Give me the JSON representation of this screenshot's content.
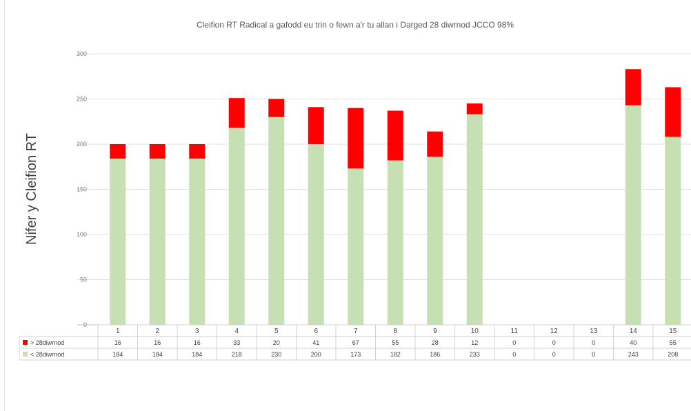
{
  "chart_data": {
    "type": "bar",
    "stacked": true,
    "title": "Cleifion RT Radical a gafodd eu trin o fewn a'r tu allan i Darged 28 diwrnod JCCO  98%",
    "ylabel": "Nifer y Cleifion RT",
    "xlabel": "",
    "ylim": [
      0,
      300
    ],
    "yticks": [
      0,
      50,
      100,
      150,
      200,
      250,
      300
    ],
    "grid": true,
    "legend": "data-table",
    "categories": [
      "1",
      "2",
      "3",
      "4",
      "5",
      "6",
      "7",
      "8",
      "9",
      "10",
      "11",
      "12",
      "13",
      "14",
      "15"
    ],
    "series": [
      {
        "name": "< 28diwrnod",
        "color": "#c6e0b4",
        "values": [
          184,
          184,
          184,
          218,
          230,
          200,
          173,
          182,
          186,
          233,
          0,
          0,
          0,
          243,
          208
        ]
      },
      {
        "name": "> 28diwrnod",
        "color": "#ff0000",
        "values": [
          16,
          16,
          16,
          33,
          20,
          41,
          67,
          55,
          28,
          12,
          0,
          0,
          0,
          40,
          55
        ]
      }
    ]
  }
}
